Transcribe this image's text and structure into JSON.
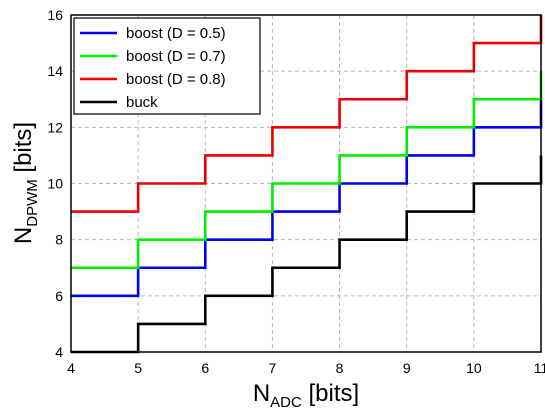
{
  "chart_data": {
    "type": "line",
    "step": true,
    "xlabel": {
      "main": "N",
      "sub": "ADC",
      "rest": " [bits]"
    },
    "ylabel": {
      "main": "N",
      "sub": "DPWM",
      "rest": " [bits]"
    },
    "xlim": [
      4,
      11
    ],
    "ylim": [
      4,
      16
    ],
    "xticks": [
      "4",
      "5",
      "6",
      "7",
      "8",
      "9",
      "10",
      "11"
    ],
    "yticks": [
      "4",
      "6",
      "8",
      "10",
      "12",
      "14",
      "16"
    ],
    "grid": true,
    "legend_position": "top-left",
    "x": [
      4,
      5,
      6,
      7,
      8,
      9,
      10,
      11
    ],
    "series": [
      {
        "name": "boost (D = 0.5)",
        "color": "#0000ee",
        "values": [
          6,
          7,
          8,
          9,
          10,
          11,
          12,
          13
        ]
      },
      {
        "name": "boost (D = 0.7)",
        "color": "#00ee00",
        "values": [
          7,
          8,
          9,
          10,
          11,
          12,
          13,
          14
        ]
      },
      {
        "name": "boost (D = 0.8)",
        "color": "#ee0000",
        "values": [
          9,
          10,
          11,
          12,
          13,
          14,
          15,
          16
        ]
      },
      {
        "name": "buck",
        "color": "#000000",
        "values": [
          4,
          5,
          6,
          7,
          8,
          9,
          10,
          11
        ]
      }
    ]
  }
}
